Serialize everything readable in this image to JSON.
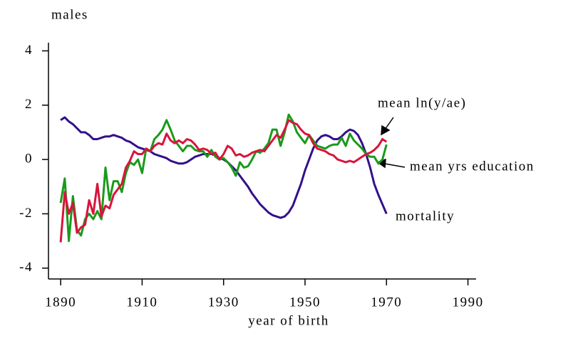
{
  "chart_data": {
    "type": "line",
    "y_label": "males",
    "x_label": "year of birth",
    "x": [
      1890,
      1891,
      1892,
      1893,
      1894,
      1895,
      1896,
      1897,
      1898,
      1899,
      1900,
      1901,
      1902,
      1903,
      1904,
      1905,
      1906,
      1907,
      1908,
      1909,
      1910,
      1911,
      1912,
      1913,
      1914,
      1915,
      1916,
      1917,
      1918,
      1919,
      1920,
      1921,
      1922,
      1923,
      1924,
      1925,
      1926,
      1927,
      1928,
      1929,
      1930,
      1931,
      1932,
      1933,
      1934,
      1935,
      1936,
      1937,
      1938,
      1939,
      1940,
      1941,
      1942,
      1943,
      1944,
      1945,
      1946,
      1947,
      1948,
      1949,
      1950,
      1951,
      1952,
      1953,
      1954,
      1955,
      1956,
      1957,
      1958,
      1959,
      1960,
      1961,
      1962,
      1963,
      1964,
      1965,
      1966,
      1967,
      1968,
      1969,
      1970
    ],
    "series": [
      {
        "name": "mortality",
        "color": "#33108a",
        "values": [
          1.45,
          1.55,
          1.4,
          1.3,
          1.15,
          1.0,
          1.0,
          0.9,
          0.75,
          0.75,
          0.8,
          0.85,
          0.85,
          0.9,
          0.85,
          0.8,
          0.7,
          0.65,
          0.55,
          0.45,
          0.4,
          0.35,
          0.3,
          0.2,
          0.15,
          0.1,
          0.05,
          -0.05,
          -0.1,
          -0.15,
          -0.15,
          -0.1,
          0.0,
          0.1,
          0.15,
          0.2,
          0.2,
          0.2,
          0.15,
          0.05,
          0.0,
          -0.1,
          -0.25,
          -0.4,
          -0.6,
          -0.8,
          -1.0,
          -1.25,
          -1.45,
          -1.65,
          -1.8,
          -1.95,
          -2.05,
          -2.1,
          -2.15,
          -2.1,
          -1.95,
          -1.7,
          -1.3,
          -0.9,
          -0.4,
          0.0,
          0.4,
          0.7,
          0.85,
          0.9,
          0.85,
          0.75,
          0.75,
          0.85,
          1.0,
          1.1,
          1.05,
          0.9,
          0.6,
          0.2,
          -0.3,
          -0.9,
          -1.3,
          -1.65,
          -2.0
        ]
      },
      {
        "name": "mean yrs education",
        "color": "#1a9a1a",
        "values": [
          -1.6,
          -0.7,
          -3.0,
          -1.35,
          -2.6,
          -2.8,
          -2.2,
          -2.0,
          -2.2,
          -1.9,
          -2.2,
          -0.3,
          -1.5,
          -0.8,
          -0.8,
          -1.2,
          -0.5,
          -0.1,
          -0.2,
          0.0,
          -0.5,
          0.4,
          0.3,
          0.75,
          0.9,
          1.1,
          1.45,
          1.1,
          0.7,
          0.5,
          0.3,
          0.5,
          0.5,
          0.35,
          0.3,
          0.3,
          0.1,
          0.35,
          0.1,
          0.0,
          0.05,
          -0.1,
          -0.3,
          -0.6,
          -0.1,
          -0.3,
          -0.25,
          0.0,
          0.3,
          0.25,
          0.4,
          0.6,
          1.1,
          1.1,
          0.5,
          1.0,
          1.65,
          1.4,
          1.0,
          0.8,
          0.6,
          0.9,
          0.7,
          0.5,
          0.45,
          0.4,
          0.5,
          0.55,
          0.55,
          0.8,
          0.5,
          0.95,
          0.7,
          0.55,
          0.4,
          0.2,
          0.1,
          0.1,
          -0.15,
          0.0,
          0.55
        ]
      },
      {
        "name": "mean ln(y/ae)",
        "color": "#d8143c",
        "values": [
          -3.05,
          -1.2,
          -2.0,
          -1.6,
          -2.7,
          -2.5,
          -2.4,
          -1.5,
          -2.0,
          -0.9,
          -2.1,
          -1.7,
          -1.8,
          -1.3,
          -1.1,
          -0.9,
          -0.3,
          -0.05,
          0.3,
          0.2,
          0.2,
          0.4,
          0.3,
          0.5,
          0.6,
          0.55,
          0.95,
          0.7,
          0.6,
          0.7,
          0.6,
          0.75,
          0.7,
          0.55,
          0.35,
          0.4,
          0.35,
          0.2,
          0.25,
          0.0,
          0.2,
          0.5,
          0.4,
          0.15,
          0.2,
          0.1,
          0.15,
          0.25,
          0.3,
          0.35,
          0.3,
          0.5,
          0.7,
          0.9,
          0.8,
          1.1,
          1.45,
          1.35,
          1.3,
          1.1,
          0.95,
          0.9,
          0.6,
          0.4,
          0.35,
          0.3,
          0.2,
          0.15,
          0.0,
          -0.05,
          -0.1,
          -0.05,
          -0.1,
          0.0,
          0.1,
          0.2,
          0.25,
          0.35,
          0.5,
          0.75,
          0.65
        ]
      }
    ],
    "xlim": [
      1887,
      1992
    ],
    "ylim": [
      -4.4,
      4.3
    ],
    "xticks": [
      1890,
      1910,
      1930,
      1950,
      1970,
      1990
    ],
    "yticks": [
      -4,
      -2,
      0,
      2,
      4
    ]
  }
}
